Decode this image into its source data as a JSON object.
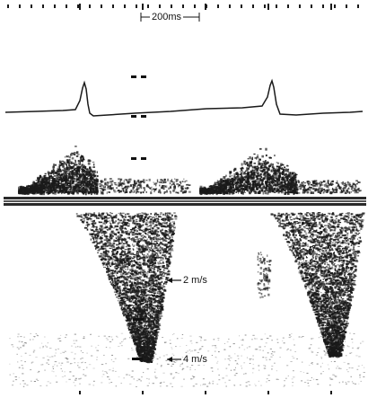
{
  "figure": {
    "background": "#ffffff",
    "trace_color": "#1a1a1a",
    "time_scale_label": "200ms",
    "velocity_labels": [
      "2 m/s",
      "4 m/s"
    ]
  }
}
